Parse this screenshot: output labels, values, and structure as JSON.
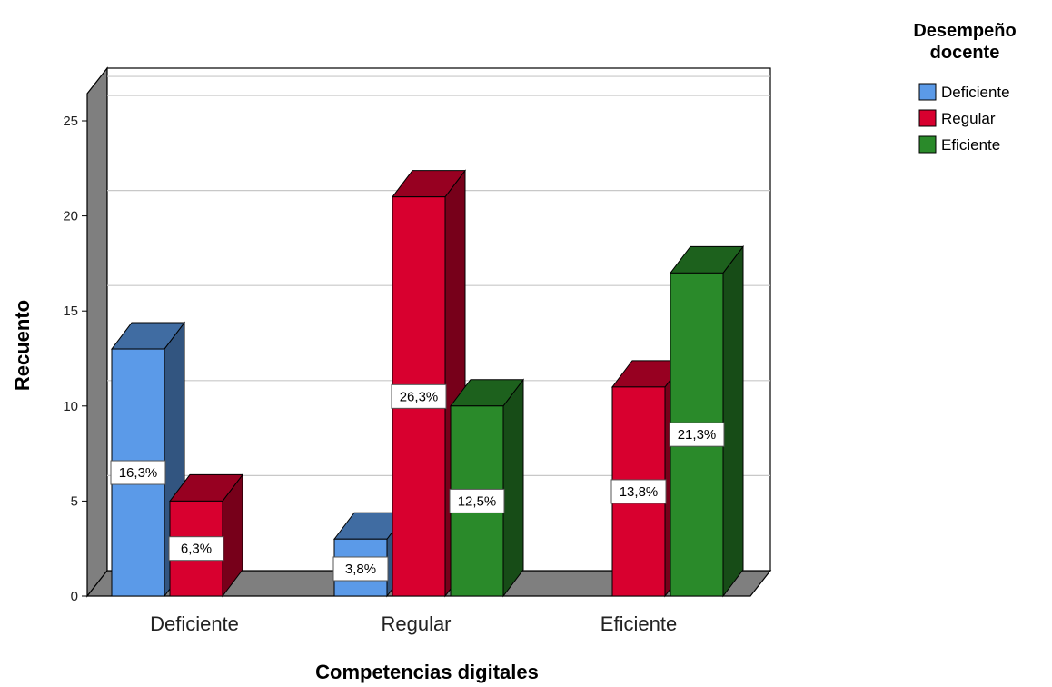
{
  "chart_data": {
    "type": "bar",
    "title": "",
    "xlabel": "Competencias digitales",
    "ylabel": "Recuento",
    "categories": [
      "Deficiente",
      "Regular",
      "Eficiente"
    ],
    "ylim": [
      0,
      26
    ],
    "yticks": [
      0,
      5,
      10,
      15,
      20,
      25
    ],
    "grid": true,
    "legend": {
      "title_line1": "Desempeño",
      "title_line2": "docente",
      "placement": "top-right"
    },
    "series": [
      {
        "name": "Deficiente",
        "color": "#5b9ae8",
        "values": [
          13,
          3,
          null
        ],
        "labels": [
          "16,3%",
          "3,8%",
          ""
        ]
      },
      {
        "name": "Regular",
        "color": "#d8002f",
        "values": [
          5,
          21,
          11
        ],
        "labels": [
          "6,3%",
          "26,3%",
          "13,8%"
        ]
      },
      {
        "name": "Eficiente",
        "color": "#2a8a2a",
        "values": [
          null,
          10,
          17
        ],
        "labels": [
          "",
          "12,5%",
          "21,3%"
        ]
      }
    ]
  }
}
